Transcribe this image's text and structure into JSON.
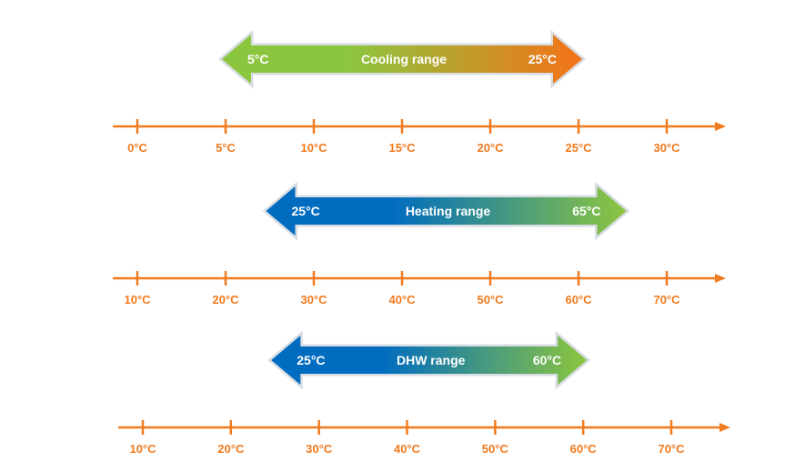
{
  "colors": {
    "axis": "#f07a1e",
    "tick_label": "#f07a1e",
    "cooling_start": "#8cc63f",
    "cooling_end": "#f47216",
    "heating_start": "#006cc0",
    "heating_end": "#8cc63f",
    "dhw_start": "#006cc0",
    "dhw_end": "#8cc63f"
  },
  "ranges": [
    {
      "id": "cooling",
      "label": "Cooling range",
      "min_label": "5°C",
      "max_label": "25°C",
      "min": 5,
      "max": 25,
      "axis": {
        "ticks": [
          0,
          5,
          10,
          15,
          20,
          25,
          30
        ],
        "tick_labels": [
          "0°C",
          "5°C",
          "10°C",
          "15°C",
          "20°C",
          "25°C",
          "30°C"
        ]
      }
    },
    {
      "id": "heating",
      "label": "Heating range",
      "min_label": "25°C",
      "max_label": "65°C",
      "min": 25,
      "max": 65,
      "axis": {
        "ticks": [
          10,
          20,
          30,
          40,
          50,
          60,
          70
        ],
        "tick_labels": [
          "10°C",
          "20°C",
          "30°C",
          "40°C",
          "50°C",
          "60°C",
          "70°C"
        ]
      }
    },
    {
      "id": "dhw",
      "label": "DHW range",
      "min_label": "25°C",
      "max_label": "60°C",
      "min": 25,
      "max": 60,
      "axis": {
        "ticks": [
          10,
          20,
          30,
          40,
          50,
          60,
          70
        ],
        "tick_labels": [
          "10°C",
          "20°C",
          "30°C",
          "40°C",
          "50°C",
          "60°C",
          "70°C"
        ]
      }
    }
  ]
}
